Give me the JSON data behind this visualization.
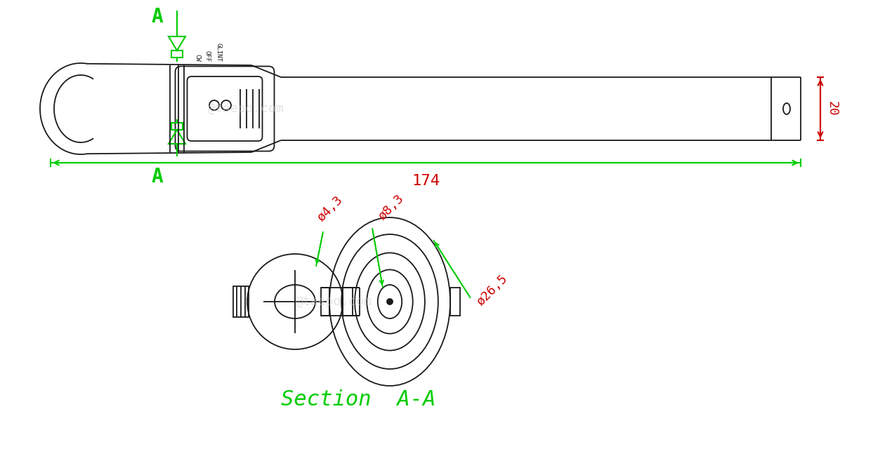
{
  "bg_color": "#ffffff",
  "line_color": "#1a1a1a",
  "green_color": "#00cc00",
  "red_color": "#cc0000",
  "watermark_color": "#c8c8c8",
  "watermark_text": "@taepo.com",
  "dim_174": "174",
  "dim_20": "20",
  "dim_phi43": "ø4,3",
  "dim_phi83": "ø8,3",
  "dim_phi265": "ø26,5",
  "section_text": "Section  A-A",
  "cw": "CW",
  "off": "OFF",
  "glint": "GLINT",
  "label_A": "A"
}
